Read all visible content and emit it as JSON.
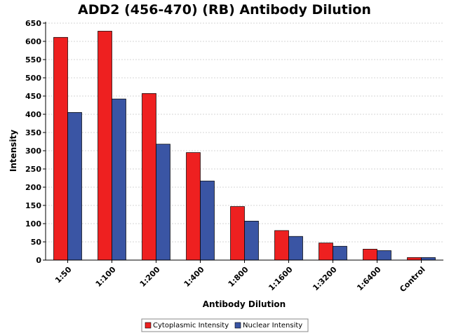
{
  "chart_data": {
    "type": "bar",
    "title": "ADD2 (456-470) (RB) Antibody Dilution",
    "xlabel": "Antibody Dilution",
    "ylabel": "Intensity",
    "ylim": [
      0,
      650
    ],
    "yticks": [
      0,
      50,
      100,
      150,
      200,
      250,
      300,
      350,
      400,
      450,
      500,
      550,
      600,
      650
    ],
    "grid": true,
    "legend_position": "bottom",
    "categories": [
      "1:50",
      "1:100",
      "1:200",
      "1:400",
      "1:800",
      "1:1600",
      "1:3200",
      "1:6400",
      "Control"
    ],
    "series": [
      {
        "name": "Cytoplasmic Intensity",
        "color": "#ee2020",
        "values": [
          611,
          628,
          457,
          295,
          147,
          81,
          47,
          30,
          7
        ]
      },
      {
        "name": "Nuclear Intensity",
        "color": "#3a55a4",
        "values": [
          405,
          442,
          318,
          217,
          107,
          65,
          38,
          26,
          7
        ]
      }
    ]
  }
}
